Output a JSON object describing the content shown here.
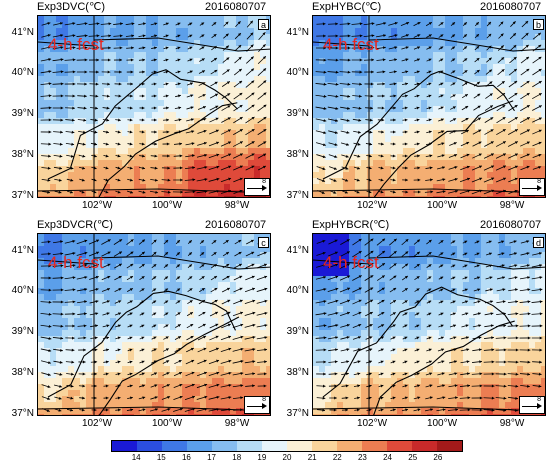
{
  "panels": [
    {
      "title": "Exp3DVC(℃)",
      "date": "2016080707",
      "label": "a",
      "annotation": "4-h fcst",
      "ref_vector": "8"
    },
    {
      "title": "ExpHYBC(℃)",
      "date": "2016080707",
      "label": "b",
      "annotation": "4-h fcst",
      "ref_vector": "8"
    },
    {
      "title": "Exp3DVCR(℃)",
      "date": "2016080707",
      "label": "c",
      "annotation": "4-h fcst",
      "ref_vector": "8"
    },
    {
      "title": "ExpHYBCR(℃)",
      "date": "2016080707",
      "label": "d",
      "annotation": "4-h fcst",
      "ref_vector": "8"
    }
  ],
  "lat_labels": [
    "41°N",
    "40°N",
    "39°N",
    "38°N",
    "37°N"
  ],
  "lon_labels": [
    "102°W",
    "100°W",
    "98°W"
  ],
  "colorbar": {
    "ticks": [
      "14",
      "15",
      "16",
      "17",
      "18",
      "19",
      "20",
      "21",
      "22",
      "23",
      "24",
      "25",
      "26"
    ],
    "colors": [
      "#1a1ad6",
      "#2b4ee0",
      "#3f78e6",
      "#5b9fea",
      "#86bdf0",
      "#b7ddf6",
      "#e6f4fb",
      "#fbf0d6",
      "#f9d49c",
      "#f4ae72",
      "#ec7d52",
      "#df4a3a",
      "#c82a2a",
      "#a31a1a"
    ]
  }
}
